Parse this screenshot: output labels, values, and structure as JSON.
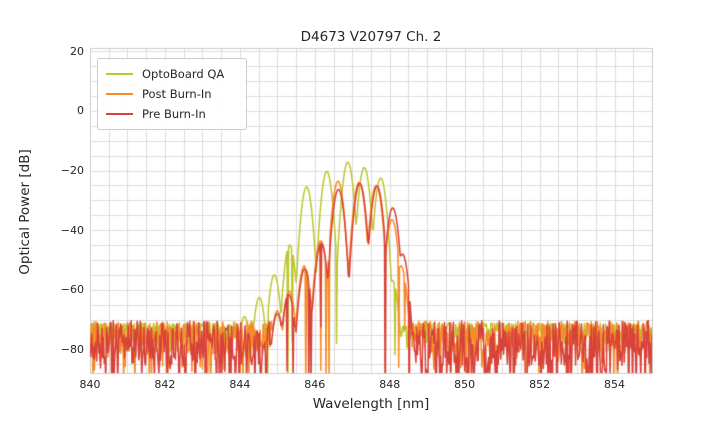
{
  "chart_data": {
    "type": "line",
    "title": "D4673 V20797 Ch. 2",
    "xlabel": "Wavelength [nm]",
    "ylabel": "Optical Power [dB]",
    "xlim": [
      840,
      855
    ],
    "ylim": [
      -87.9,
      21.1
    ],
    "xticks": [
      840,
      842,
      844,
      846,
      848,
      850,
      852,
      854
    ],
    "yticks": [
      20,
      0,
      -20,
      -40,
      -60,
      -80
    ],
    "grid": {
      "on": true,
      "x_minor_step_nm": 0.5,
      "y_minor_step_db": 5,
      "color": "#dcdcdc",
      "spine_color": "#cccccc"
    },
    "legend": {
      "position": "upper-left",
      "entries": [
        "OptoBoard QA",
        "Post Burn-In",
        "Pre Burn-In"
      ]
    },
    "sample_step_nm": 0.02,
    "series": [
      {
        "name": "OptoBoard QA",
        "color": "#bcc62e",
        "seed": 11,
        "signal_range_nm": [
          844.0,
          848.3
        ],
        "peak_modes_nm_db": [
          [
            844.12,
            -69
          ],
          [
            844.52,
            -62.5
          ],
          [
            844.92,
            -55
          ],
          [
            845.33,
            -45
          ],
          [
            845.78,
            -25.5
          ],
          [
            846.32,
            -20.3
          ],
          [
            846.88,
            -17.2
          ],
          [
            847.32,
            -19.0
          ],
          [
            847.76,
            -22.5
          ],
          [
            848.08,
            -57
          ]
        ],
        "lobe_curvature_db_per_nm2": 430,
        "noise_floor": {
          "top_db": -71.2,
          "spread_db": 7,
          "pow": 1.6,
          "deep_prob": 0.05,
          "deep_amp_db": 10
        }
      },
      {
        "name": "Post Burn-In",
        "color": "#f68b29",
        "seed": 22,
        "signal_range_nm": [
          844.8,
          848.42
        ],
        "peak_modes_nm_db": [
          [
            845.0,
            -67
          ],
          [
            845.32,
            -60.5
          ],
          [
            845.72,
            -52
          ],
          [
            846.16,
            -43.5
          ],
          [
            846.62,
            -23.6
          ],
          [
            847.18,
            -24.0
          ],
          [
            847.64,
            -25.0
          ],
          [
            848.06,
            -36.5
          ],
          [
            848.3,
            -52
          ]
        ],
        "lobe_curvature_db_per_nm2": 400,
        "noise_floor": {
          "top_db": -70.6,
          "spread_db": 12,
          "pow": 1.3,
          "deep_prob": 0.12,
          "deep_amp_db": 14
        }
      },
      {
        "name": "Pre Burn-In",
        "color": "#d8423a",
        "seed": 33,
        "signal_range_nm": [
          844.8,
          848.45
        ],
        "peak_modes_nm_db": [
          [
            845.0,
            -68
          ],
          [
            845.3,
            -61.5
          ],
          [
            845.73,
            -53
          ],
          [
            846.17,
            -44.5
          ],
          [
            846.63,
            -26.3
          ],
          [
            847.2,
            -24.3
          ],
          [
            847.66,
            -25.2
          ],
          [
            848.08,
            -32.5
          ],
          [
            848.34,
            -48
          ]
        ],
        "lobe_curvature_db_per_nm2": 400,
        "noise_floor": {
          "top_db": -70.3,
          "spread_db": 15,
          "pow": 1.1,
          "deep_prob": 0.2,
          "deep_amp_db": 18
        }
      }
    ]
  }
}
